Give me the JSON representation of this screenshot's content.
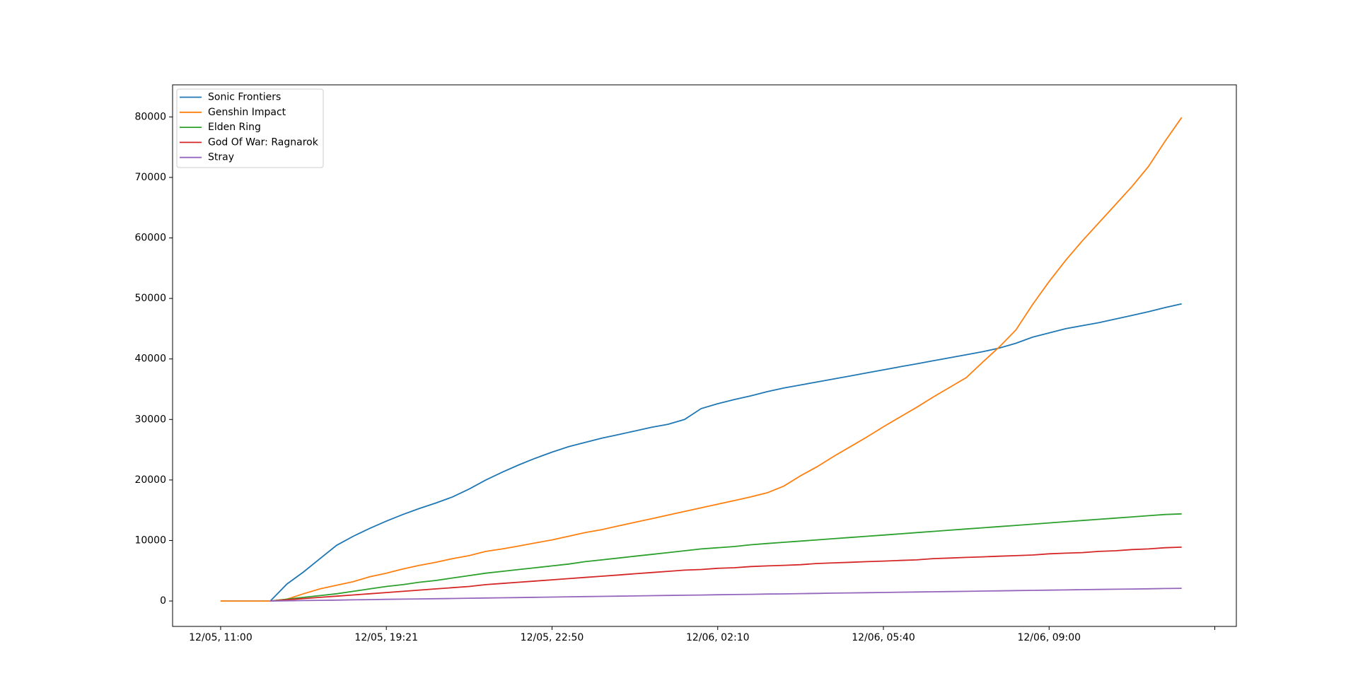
{
  "chart_data": {
    "type": "line",
    "x": [
      0,
      1,
      2,
      3,
      4,
      5,
      6,
      7,
      8,
      9,
      10,
      11,
      12,
      13,
      14,
      15,
      16,
      17,
      18,
      19,
      20,
      21,
      22,
      23,
      24,
      25,
      26,
      27,
      28,
      29,
      30,
      31,
      32,
      33,
      34,
      35,
      36,
      37,
      38,
      39,
      40,
      41,
      42,
      43,
      44,
      45,
      46,
      47,
      48,
      49,
      50,
      51,
      52,
      53,
      54,
      55,
      56,
      57,
      58
    ],
    "series": [
      {
        "name": "Sonic Frontiers",
        "color": "#1f77b4",
        "values": [
          0,
          0,
          0,
          0,
          2800,
          4800,
          7000,
          9200,
          10700,
          12000,
          13200,
          14300,
          15300,
          16200,
          17200,
          18500,
          20000,
          21300,
          22500,
          23600,
          24600,
          25500,
          26200,
          26900,
          27500,
          28100,
          28700,
          29200,
          30000,
          31800,
          32600,
          33300,
          33900,
          34600,
          35200,
          35700,
          36200,
          36700,
          37200,
          37700,
          38200,
          38700,
          39200,
          39700,
          40200,
          40700,
          41200,
          41800,
          42600,
          43600,
          44300,
          45000,
          45500,
          46000,
          46600,
          47200,
          47800,
          48500,
          49100
        ]
      },
      {
        "name": "Genshin Impact",
        "color": "#ff7f0e",
        "values": [
          0,
          0,
          0,
          0,
          300,
          1200,
          2000,
          2600,
          3200,
          4000,
          4600,
          5300,
          5900,
          6400,
          7000,
          7500,
          8200,
          8600,
          9100,
          9600,
          10100,
          10700,
          11300,
          11800,
          12400,
          13000,
          13600,
          14200,
          14800,
          15400,
          16000,
          16600,
          17200,
          17900,
          19000,
          20700,
          22200,
          23900,
          25500,
          27100,
          28800,
          30400,
          32000,
          33700,
          35300,
          36900,
          39500,
          42000,
          44800,
          49000,
          52800,
          56300,
          59500,
          62500,
          65500,
          68500,
          71800,
          76000,
          79900
        ]
      },
      {
        "name": "Elden Ring",
        "color": "#2ca02c",
        "values": [
          null,
          null,
          null,
          0,
          300,
          600,
          900,
          1200,
          1600,
          2000,
          2400,
          2700,
          3100,
          3400,
          3800,
          4200,
          4600,
          4900,
          5200,
          5500,
          5800,
          6100,
          6500,
          6800,
          7100,
          7400,
          7700,
          8000,
          8300,
          8600,
          8800,
          9000,
          9300,
          9500,
          9700,
          9900,
          10100,
          10300,
          10500,
          10700,
          10900,
          11100,
          11300,
          11500,
          11700,
          11900,
          12100,
          12300,
          12500,
          12700,
          12900,
          13100,
          13300,
          13500,
          13700,
          13900,
          14100,
          14300,
          14400
        ]
      },
      {
        "name": "God Of War: Ragnarok",
        "color": "#d62728",
        "values": [
          null,
          null,
          null,
          0,
          200,
          400,
          600,
          800,
          1000,
          1200,
          1400,
          1600,
          1800,
          2000,
          2200,
          2400,
          2700,
          2900,
          3100,
          3300,
          3500,
          3700,
          3900,
          4100,
          4300,
          4500,
          4700,
          4900,
          5100,
          5200,
          5400,
          5500,
          5700,
          5800,
          5900,
          6000,
          6200,
          6300,
          6400,
          6500,
          6600,
          6700,
          6800,
          7000,
          7100,
          7200,
          7300,
          7400,
          7500,
          7600,
          7800,
          7900,
          8000,
          8200,
          8300,
          8500,
          8600,
          8800,
          8900
        ]
      },
      {
        "name": "Stray",
        "color": "#9467bd",
        "values": [
          null,
          null,
          null,
          0,
          40,
          80,
          110,
          150,
          190,
          230,
          270,
          310,
          340,
          380,
          420,
          460,
          500,
          530,
          570,
          610,
          650,
          690,
          730,
          760,
          800,
          840,
          880,
          920,
          950,
          990,
          1030,
          1070,
          1110,
          1150,
          1180,
          1220,
          1260,
          1300,
          1340,
          1370,
          1410,
          1450,
          1490,
          1530,
          1560,
          1600,
          1640,
          1680,
          1720,
          1760,
          1790,
          1830,
          1870,
          1910,
          1950,
          1980,
          2020,
          2060,
          2100
        ]
      }
    ],
    "xlim": [
      -2.9,
      61.3
    ],
    "xticks": [
      {
        "value": 0,
        "label": "12/05, 11:00"
      },
      {
        "value": 10,
        "label": "12/05, 19:21"
      },
      {
        "value": 20,
        "label": "12/05, 22:50"
      },
      {
        "value": 30,
        "label": "12/06, 02:10"
      },
      {
        "value": 40,
        "label": "12/06, 05:40"
      },
      {
        "value": 50,
        "label": "12/06, 09:00"
      },
      {
        "value": 60,
        "label": null
      }
    ],
    "ylim": [
      -4200,
      85300
    ],
    "yticks": [
      0,
      10000,
      20000,
      30000,
      40000,
      50000,
      60000,
      70000,
      80000
    ],
    "legend": "upper left"
  }
}
